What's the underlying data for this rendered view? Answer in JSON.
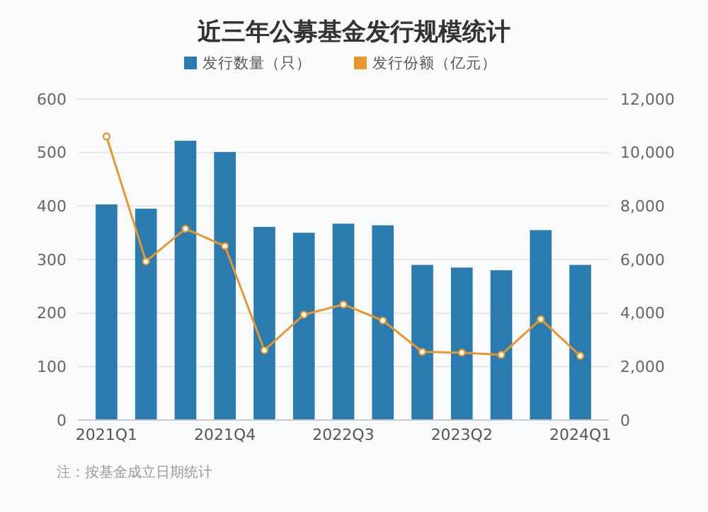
{
  "chart_data": {
    "type": "bar",
    "title": "近三年公募基金发行规模统计",
    "categories": [
      "2021Q1",
      null,
      null,
      "2021Q4",
      null,
      null,
      "2022Q3",
      null,
      null,
      "2023Q2",
      null,
      null,
      "2024Q1"
    ],
    "series": [
      {
        "name": "发行数量（只）",
        "color": "#2a7bb0",
        "values": [
          403,
          395,
          522,
          501,
          361,
          350,
          367,
          364,
          290,
          285,
          280,
          355,
          290
        ]
      },
      {
        "name": "发行份额（亿元）",
        "color": "#e8962e",
        "type": "line",
        "axis": "y2",
        "values": [
          10600,
          5930,
          7150,
          6500,
          2610,
          3940,
          4320,
          3720,
          2550,
          2520,
          2440,
          3770,
          2400
        ]
      }
    ],
    "ylim": [
      0,
      600
    ],
    "yticks": [
      0,
      100,
      200,
      300,
      400,
      500,
      600
    ],
    "y2lim": [
      0,
      12000
    ],
    "y2ticks": [
      0,
      {
        "value": 2000,
        "label": "2,000"
      },
      {
        "value": 4000,
        "label": "4,000"
      },
      {
        "value": 6000,
        "label": "6,000"
      },
      {
        "value": 8000,
        "label": "8,000"
      },
      {
        "value": 10000,
        "label": "10,000"
      },
      {
        "value": 12000,
        "label": "12,000"
      }
    ],
    "grid": "y",
    "legend": "top",
    "marker": "circle",
    "annotations": [
      "注：按基金成立日期统计"
    ]
  }
}
